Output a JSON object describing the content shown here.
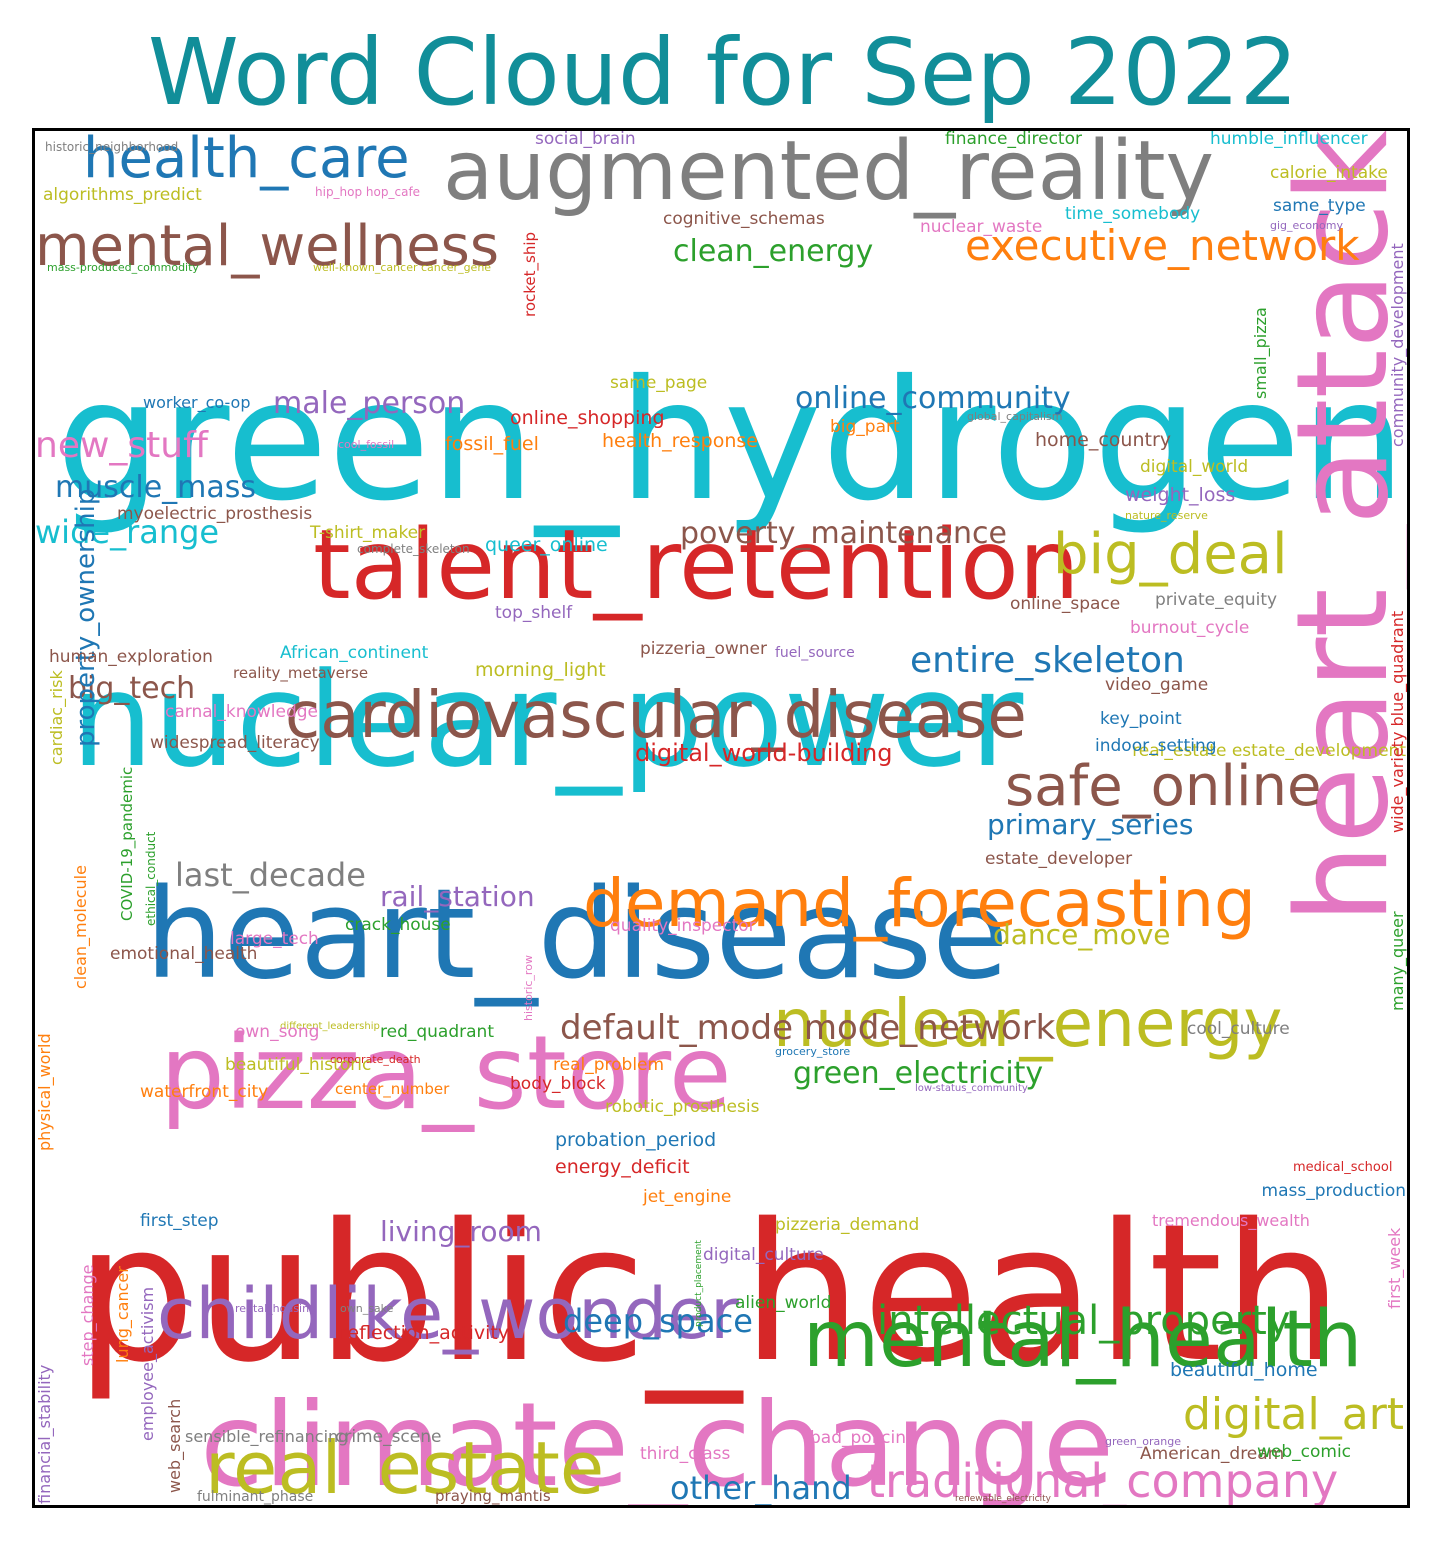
{
  "title": "Word Cloud for Sep 2022",
  "colors": {
    "title": "#118e99",
    "palette": {
      "blue": "#1f77b4",
      "orange": "#ff7f0e",
      "green": "#2ca02c",
      "red": "#d62728",
      "purple": "#9467bd",
      "brown": "#8c564b",
      "pink": "#e377c2",
      "gray": "#7f7f7f",
      "olive": "#bcbd22",
      "cyan": "#17becf"
    }
  },
  "words": [
    {
      "text": "public_health",
      "c": "red"
    },
    {
      "text": "green_hydrogen",
      "c": "cyan"
    },
    {
      "text": "heart_disease",
      "c": "blue"
    },
    {
      "text": "nuclear_power",
      "c": "cyan"
    },
    {
      "text": "climate_change",
      "c": "pink"
    },
    {
      "text": "heart_attack",
      "c": "pink"
    },
    {
      "text": "pizza_store",
      "c": "pink"
    },
    {
      "text": "talent_retention",
      "c": "red"
    },
    {
      "text": "augmented_reality",
      "c": "gray"
    },
    {
      "text": "mental_health",
      "c": "green"
    },
    {
      "text": "childlike_wonder",
      "c": "purple"
    },
    {
      "text": "demand_forecasting",
      "c": "orange"
    },
    {
      "text": "cardiovascular_disease",
      "c": "brown"
    },
    {
      "text": "nuclear_energy",
      "c": "olive"
    },
    {
      "text": "real_estate",
      "c": "olive"
    },
    {
      "text": "mental_wellness",
      "c": "brown"
    },
    {
      "text": "health_care",
      "c": "blue"
    },
    {
      "text": "big_deal",
      "c": "olive"
    },
    {
      "text": "safe_online",
      "c": "brown"
    },
    {
      "text": "traditional_company",
      "c": "pink"
    },
    {
      "text": "intellectual_property",
      "c": "green"
    },
    {
      "text": "digital_art",
      "c": "olive"
    },
    {
      "text": "executive_network",
      "c": "orange"
    },
    {
      "text": "entire_skeleton",
      "c": "blue"
    },
    {
      "text": "default_mode mode_network",
      "c": "brown"
    },
    {
      "text": "online_community",
      "c": "blue"
    },
    {
      "text": "other_hand",
      "c": "blue"
    },
    {
      "text": "deep_space",
      "c": "blue"
    },
    {
      "text": "new_stuff",
      "c": "pink"
    },
    {
      "text": "poverty_maintenance",
      "c": "brown"
    },
    {
      "text": "male_person",
      "c": "purple"
    },
    {
      "text": "muscle_mass",
      "c": "blue"
    },
    {
      "text": "wide_range",
      "c": "cyan"
    },
    {
      "text": "big_tech",
      "c": "brown"
    },
    {
      "text": "last_decade",
      "c": "gray"
    },
    {
      "text": "rail_station",
      "c": "purple"
    },
    {
      "text": "living_room",
      "c": "purple"
    },
    {
      "text": "primary_series",
      "c": "blue"
    },
    {
      "text": "dance_move",
      "c": "olive"
    },
    {
      "text": "green_electricity",
      "c": "green"
    },
    {
      "text": "clean_energy",
      "c": "green"
    },
    {
      "text": "property_ownership",
      "c": "blue"
    },
    {
      "text": "digital_world-building",
      "c": "red"
    },
    {
      "text": "social_brain",
      "c": "purple"
    },
    {
      "text": "finance_director",
      "c": "green"
    },
    {
      "text": "humble_influencer",
      "c": "cyan"
    },
    {
      "text": "calorie_intake",
      "c": "olive"
    },
    {
      "text": "algorithms_predict",
      "c": "olive"
    },
    {
      "text": "hip_hop hop_cafe",
      "c": "pink"
    },
    {
      "text": "cognitive_schemas",
      "c": "brown"
    },
    {
      "text": "time_somebody",
      "c": "cyan"
    },
    {
      "text": "same_type",
      "c": "blue"
    },
    {
      "text": "nuclear_waste",
      "c": "pink"
    },
    {
      "text": "gig_economy",
      "c": "purple"
    },
    {
      "text": "mass-produced_commodity",
      "c": "green"
    },
    {
      "text": "well-known_cancer cancer_gene",
      "c": "olive"
    },
    {
      "text": "rocket_ship",
      "c": "red"
    },
    {
      "text": "same_page",
      "c": "olive"
    },
    {
      "text": "worker_co-op",
      "c": "blue"
    },
    {
      "text": "online_shopping",
      "c": "red"
    },
    {
      "text": "global_capitalism",
      "c": "gray"
    },
    {
      "text": "big_part",
      "c": "orange"
    },
    {
      "text": "small_pizza",
      "c": "green"
    },
    {
      "text": "community_development",
      "c": "purple"
    },
    {
      "text": "cool_fossil",
      "c": "pink"
    },
    {
      "text": "fossil_fuel",
      "c": "orange"
    },
    {
      "text": "health_response",
      "c": "orange"
    },
    {
      "text": "home_country",
      "c": "brown"
    },
    {
      "text": "digital_world",
      "c": "olive"
    },
    {
      "text": "weight_loss",
      "c": "purple"
    },
    {
      "text": "nature_reserve",
      "c": "olive"
    },
    {
      "text": "myoelectric_prosthesis",
      "c": "brown"
    },
    {
      "text": "T-shirt_maker",
      "c": "olive"
    },
    {
      "text": "complete_skeleton",
      "c": "gray"
    },
    {
      "text": "queer_online",
      "c": "cyan"
    },
    {
      "text": "online_space",
      "c": "brown"
    },
    {
      "text": "private_equity",
      "c": "gray"
    },
    {
      "text": "top_shelf",
      "c": "purple"
    },
    {
      "text": "burnout_cycle",
      "c": "pink"
    },
    {
      "text": "human_exploration",
      "c": "brown"
    },
    {
      "text": "African_continent",
      "c": "cyan"
    },
    {
      "text": "pizzeria_owner",
      "c": "brown"
    },
    {
      "text": "fuel_source",
      "c": "purple"
    },
    {
      "text": "reality_metaverse",
      "c": "brown"
    },
    {
      "text": "morning_light",
      "c": "olive"
    },
    {
      "text": "video_game",
      "c": "brown"
    },
    {
      "text": "carnal_knowledge",
      "c": "pink"
    },
    {
      "text": "key_point",
      "c": "blue"
    },
    {
      "text": "widespread_literacy",
      "c": "brown"
    },
    {
      "text": "real_estate estate_development",
      "c": "olive"
    },
    {
      "text": "indoor_setting",
      "c": "blue"
    },
    {
      "text": "cardiac_risk",
      "c": "olive"
    },
    {
      "text": "estate_developer",
      "c": "brown"
    },
    {
      "text": "emotional_health",
      "c": "brown"
    },
    {
      "text": "large_tech",
      "c": "pink"
    },
    {
      "text": "crack_house",
      "c": "green"
    },
    {
      "text": "quality_inspector",
      "c": "pink"
    },
    {
      "text": "wide_variety blue_quadrant",
      "c": "red"
    },
    {
      "text": "COVID-19_pandemic",
      "c": "green"
    },
    {
      "text": "ethical_conduct",
      "c": "green"
    },
    {
      "text": "clean_molecule",
      "c": "orange"
    },
    {
      "text": "different_leadership",
      "c": "olive"
    },
    {
      "text": "historic_row",
      "c": "pink"
    },
    {
      "text": "own_song",
      "c": "pink"
    },
    {
      "text": "red_quadrant",
      "c": "green"
    },
    {
      "text": "cool_culture",
      "c": "gray"
    },
    {
      "text": "many_queer",
      "c": "green"
    },
    {
      "text": "grocery_store",
      "c": "blue"
    },
    {
      "text": "corporate_death",
      "c": "red"
    },
    {
      "text": "beautiful_historic",
      "c": "olive"
    },
    {
      "text": "real_problem",
      "c": "orange"
    },
    {
      "text": "center_number",
      "c": "orange"
    },
    {
      "text": "body_block",
      "c": "red"
    },
    {
      "text": "low-status_community",
      "c": "purple"
    },
    {
      "text": "waterfront_city",
      "c": "orange"
    },
    {
      "text": "robotic_prosthesis",
      "c": "olive"
    },
    {
      "text": "physical_world",
      "c": "orange"
    },
    {
      "text": "probation_period",
      "c": "blue"
    },
    {
      "text": "energy_deficit",
      "c": "red"
    },
    {
      "text": "medical_school",
      "c": "red"
    },
    {
      "text": "mass_production",
      "c": "blue"
    },
    {
      "text": "jet_engine",
      "c": "orange"
    },
    {
      "text": "first_step",
      "c": "blue"
    },
    {
      "text": "pizzeria_demand",
      "c": "olive"
    },
    {
      "text": "tremendous_wealth",
      "c": "pink"
    },
    {
      "text": "digital_culture",
      "c": "purple"
    },
    {
      "text": "first_week",
      "c": "pink"
    },
    {
      "text": "rental_housing",
      "c": "purple"
    },
    {
      "text": "own_sake",
      "c": "gray"
    },
    {
      "text": "alien_world",
      "c": "green"
    },
    {
      "text": "step_change",
      "c": "pink"
    },
    {
      "text": "lung_cancer",
      "c": "orange"
    },
    {
      "text": "reflection_activity",
      "c": "red"
    },
    {
      "text": "product_placement",
      "c": "green"
    },
    {
      "text": "beautiful_home",
      "c": "blue"
    },
    {
      "text": "financial_stability",
      "c": "purple"
    },
    {
      "text": "employee_activism",
      "c": "purple"
    },
    {
      "text": "web_search",
      "c": "brown"
    },
    {
      "text": "sensible_refinancing",
      "c": "gray"
    },
    {
      "text": "crime_scene",
      "c": "gray"
    },
    {
      "text": "bad_policing",
      "c": "pink"
    },
    {
      "text": "green_orange",
      "c": "purple"
    },
    {
      "text": "third_class",
      "c": "pink"
    },
    {
      "text": "American_dream",
      "c": "brown"
    },
    {
      "text": "web_comic",
      "c": "green"
    },
    {
      "text": "fulminant_phase",
      "c": "gray"
    },
    {
      "text": "praying_mantis",
      "c": "brown"
    },
    {
      "text": "renewable_electricity",
      "c": "brown"
    },
    {
      "text": "historic_neighborhood",
      "c": "gray"
    }
  ]
}
